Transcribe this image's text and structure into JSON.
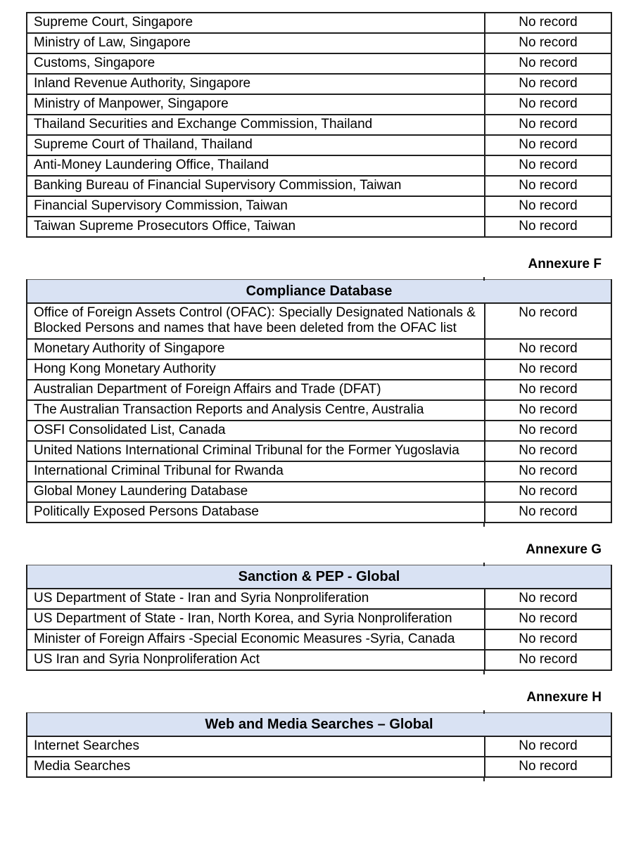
{
  "colors": {
    "title_band_bg": "#d9e2f3",
    "table_border": "#1f1f1f",
    "text": "#000000"
  },
  "sections": [
    {
      "annexure": "",
      "title": "",
      "rows": [
        {
          "source": "Supreme Court, Singapore",
          "result": "No record"
        },
        {
          "source": "Ministry of Law, Singapore",
          "result": "No record"
        },
        {
          "source": "Customs, Singapore",
          "result": "No record"
        },
        {
          "source": "Inland Revenue Authority, Singapore",
          "result": "No record"
        },
        {
          "source": "Ministry of Manpower, Singapore",
          "result": "No record"
        },
        {
          "source": "Thailand Securities and Exchange Commission, Thailand",
          "result": "No record"
        },
        {
          "source": "Supreme Court of Thailand, Thailand",
          "result": "No record"
        },
        {
          "source": "Anti-Money Laundering Office, Thailand",
          "result": "No record"
        },
        {
          "source": "Banking Bureau of Financial Supervisory Commission, Taiwan",
          "result": "No record"
        },
        {
          "source": "Financial Supervisory Commission, Taiwan",
          "result": "No record"
        },
        {
          "source": "Taiwan Supreme Prosecutors Office, Taiwan",
          "result": "No record"
        }
      ]
    },
    {
      "annexure": "Annexure F",
      "title": "Compliance Database",
      "rows": [
        {
          "source": "Office of Foreign Assets Control (OFAC): Specially Designated Nationals & Blocked Persons and names that have been deleted from the OFAC list",
          "result": "No record"
        },
        {
          "source": "Monetary Authority of Singapore",
          "result": "No record"
        },
        {
          "source": "Hong Kong Monetary Authority",
          "result": "No record"
        },
        {
          "source": "Australian Department of Foreign Affairs and Trade (DFAT)",
          "result": "No record"
        },
        {
          "source": "The Australian Transaction Reports and Analysis Centre, Australia",
          "result": "No record"
        },
        {
          "source": "OSFI Consolidated List, Canada",
          "result": "No record"
        },
        {
          "source": "United Nations International Criminal Tribunal for the Former Yugoslavia",
          "result": "No record"
        },
        {
          "source": "International Criminal Tribunal for Rwanda",
          "result": "No record"
        },
        {
          "source": "Global Money Laundering Database",
          "result": "No record"
        },
        {
          "source": "Politically Exposed Persons Database",
          "result": "No record"
        }
      ]
    },
    {
      "annexure": "Annexure G",
      "title": "Sanction & PEP - Global",
      "rows": [
        {
          "source": "US Department of State - Iran and Syria Nonproliferation",
          "result": "No record"
        },
        {
          "source": "US Department of State - Iran, North Korea, and Syria Nonproliferation",
          "result": "No record"
        },
        {
          "source": "Minister of Foreign Affairs -Special Economic Measures -Syria, Canada",
          "result": "No record"
        },
        {
          "source": "US Iran and Syria Nonproliferation Act",
          "result": "No record"
        }
      ]
    },
    {
      "annexure": "Annexure H",
      "title": "Web and Media Searches – Global",
      "rows": [
        {
          "source": "Internet Searches",
          "result": "No record"
        },
        {
          "source": "Media Searches",
          "result": "No record"
        }
      ]
    }
  ]
}
